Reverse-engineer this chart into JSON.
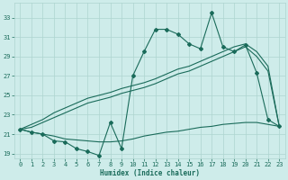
{
  "xlabel": "Humidex (Indice chaleur)",
  "background_color": "#ceecea",
  "grid_color": "#aed4cf",
  "line_color": "#1a6b5a",
  "x_values": [
    0,
    1,
    2,
    3,
    4,
    5,
    6,
    7,
    8,
    9,
    10,
    11,
    12,
    13,
    14,
    15,
    16,
    17,
    18,
    19,
    20,
    21,
    22,
    23
  ],
  "y_main": [
    21.5,
    21.2,
    21.0,
    20.3,
    20.2,
    19.5,
    19.2,
    18.8,
    22.2,
    19.5,
    27.0,
    29.5,
    31.8,
    31.8,
    31.3,
    30.3,
    29.8,
    33.5,
    30.0,
    29.5,
    30.2,
    27.3,
    22.5,
    21.8
  ],
  "y_flat": [
    21.5,
    21.2,
    21.0,
    20.8,
    20.5,
    20.4,
    20.3,
    20.2,
    20.2,
    20.3,
    20.5,
    20.8,
    21.0,
    21.2,
    21.3,
    21.5,
    21.7,
    21.8,
    22.0,
    22.1,
    22.2,
    22.2,
    22.0,
    21.8
  ],
  "y_band1": [
    21.5,
    21.7,
    22.2,
    22.7,
    23.2,
    23.7,
    24.2,
    24.5,
    24.8,
    25.2,
    25.5,
    25.8,
    26.2,
    26.7,
    27.2,
    27.5,
    28.0,
    28.5,
    29.0,
    29.5,
    30.0,
    29.0,
    27.5,
    21.8
  ],
  "y_band2": [
    21.5,
    22.0,
    22.5,
    23.2,
    23.7,
    24.2,
    24.7,
    25.0,
    25.3,
    25.7,
    26.0,
    26.3,
    26.7,
    27.2,
    27.7,
    28.0,
    28.5,
    29.0,
    29.5,
    30.0,
    30.3,
    29.5,
    28.0,
    21.8
  ],
  "ylim": [
    18.5,
    34.5
  ],
  "xlim": [
    -0.5,
    23.5
  ],
  "yticks": [
    19,
    21,
    23,
    25,
    27,
    29,
    31,
    33
  ],
  "xticks": [
    0,
    1,
    2,
    3,
    4,
    5,
    6,
    7,
    8,
    9,
    10,
    11,
    12,
    13,
    14,
    15,
    16,
    17,
    18,
    19,
    20,
    21,
    22,
    23
  ]
}
